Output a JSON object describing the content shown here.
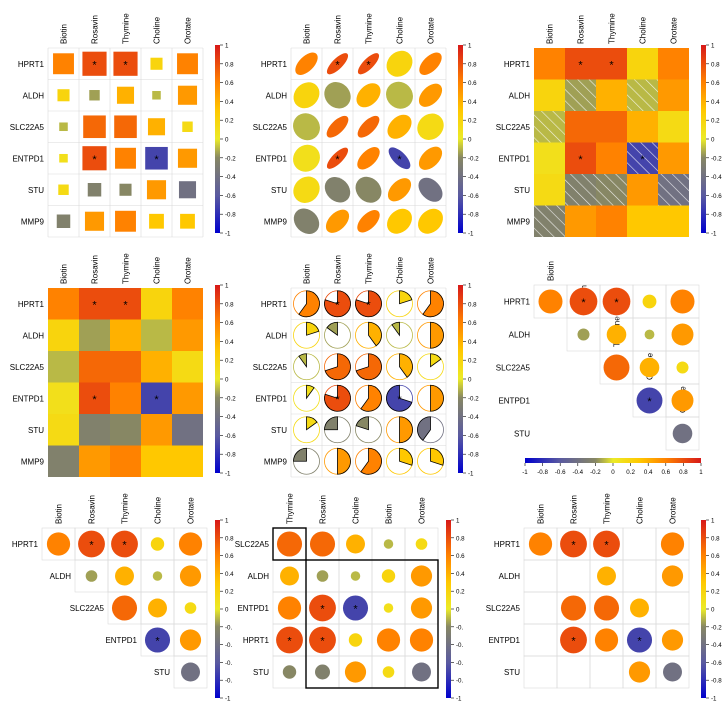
{
  "chart_data": {
    "type": "heatmap",
    "panel_count": 9,
    "variables": [
      "HPRT1",
      "ALDH",
      "SLC22A5",
      "ENTPD1",
      "STU",
      "MMP9"
    ],
    "metabolites": [
      "Biotin",
      "Rosavin",
      "Thymine",
      "Choline",
      "Orotate"
    ],
    "value_range": [
      -1,
      1
    ],
    "colorbar_ticks": [
      "1",
      "0.8",
      "0.6",
      "0.4",
      "0.2",
      "0",
      "-0.2",
      "-0.4",
      "-0.6",
      "-0.8",
      "-1"
    ],
    "colorbar_ticks_truncated": [
      "1",
      "0.8",
      "0.6",
      "0.4",
      "0.2",
      "0",
      "-0.",
      "-0.",
      "-0.",
      "-0.",
      "-1"
    ],
    "colorbar_ticks_horizontal": [
      "-1",
      "-0.8",
      "-0.6",
      "-0.4",
      "-0.2",
      "0",
      "0.2",
      "0.4",
      "0.6",
      "0.8",
      "1"
    ],
    "significance_marker": "*",
    "significant_cells": [
      [
        "HPRT1",
        "Rosavin"
      ],
      [
        "HPRT1",
        "Thymine"
      ],
      [
        "ENTPD1",
        "Rosavin"
      ],
      [
        "ENTPD1",
        "Choline"
      ]
    ],
    "matrix": [
      {
        "row": "HPRT1",
        "values": [
          0.6,
          0.8,
          0.8,
          0.2,
          0.6
        ]
      },
      {
        "row": "ALDH",
        "values": [
          0.2,
          -0.15,
          0.4,
          -0.1,
          0.5
        ]
      },
      {
        "row": "SLC22A5",
        "values": [
          -0.1,
          0.7,
          0.7,
          0.4,
          0.15
        ]
      },
      {
        "row": "ENTPD1",
        "values": [
          0.1,
          0.8,
          0.6,
          -0.7,
          0.5
        ]
      },
      {
        "row": "STU",
        "values": [
          0.15,
          -0.25,
          -0.2,
          0.5,
          -0.4
        ]
      },
      {
        "row": "MMP9",
        "values": [
          -0.25,
          0.5,
          0.6,
          0.3,
          0.3
        ]
      }
    ],
    "panels": [
      {
        "position": "row1-col1",
        "method": "square"
      },
      {
        "position": "row1-col2",
        "method": "ellipse"
      },
      {
        "position": "row1-col3",
        "method": "shade"
      },
      {
        "position": "row2-col1",
        "method": "color"
      },
      {
        "position": "row2-col2",
        "method": "pie"
      },
      {
        "position": "row2-col3",
        "method": "circle",
        "layout": "upper-triangle",
        "row_labels": [
          "HPRT1",
          "ALDH",
          "SLC22A5",
          "ENTPD1",
          "STU"
        ],
        "col_labels": [
          "Biotin",
          "Rosavin",
          "Thymine",
          "Choline",
          "Orotate"
        ]
      },
      {
        "position": "row3-col1",
        "method": "circle",
        "layout": "upper-triangle-full",
        "row_labels": [
          "HPRT1",
          "ALDH",
          "SLC22A5",
          "ENTPD1",
          "STU"
        ],
        "col_labels": [
          "Biotin",
          "Rosavin",
          "Thymine",
          "Choline",
          "Orotate"
        ]
      },
      {
        "position": "row3-col2",
        "method": "circle",
        "layout": "reordered-clustered",
        "row_labels": [
          "SLC22A5",
          "ALDH",
          "ENTPD1",
          "HPRT1",
          "STU"
        ],
        "col_labels": [
          "Thymine",
          "Rosavin",
          "Choline",
          "Biotin",
          "Orotate"
        ]
      },
      {
        "position": "row3-col3",
        "method": "circle",
        "layout": "significance-filtered",
        "row_labels": [
          "HPRT1",
          "ALDH",
          "SLC22A5",
          "ENTPD1",
          "STU"
        ],
        "col_labels": [
          "Biotin",
          "Rosavin",
          "Thymine",
          "Choline",
          "Orotate"
        ]
      }
    ]
  }
}
